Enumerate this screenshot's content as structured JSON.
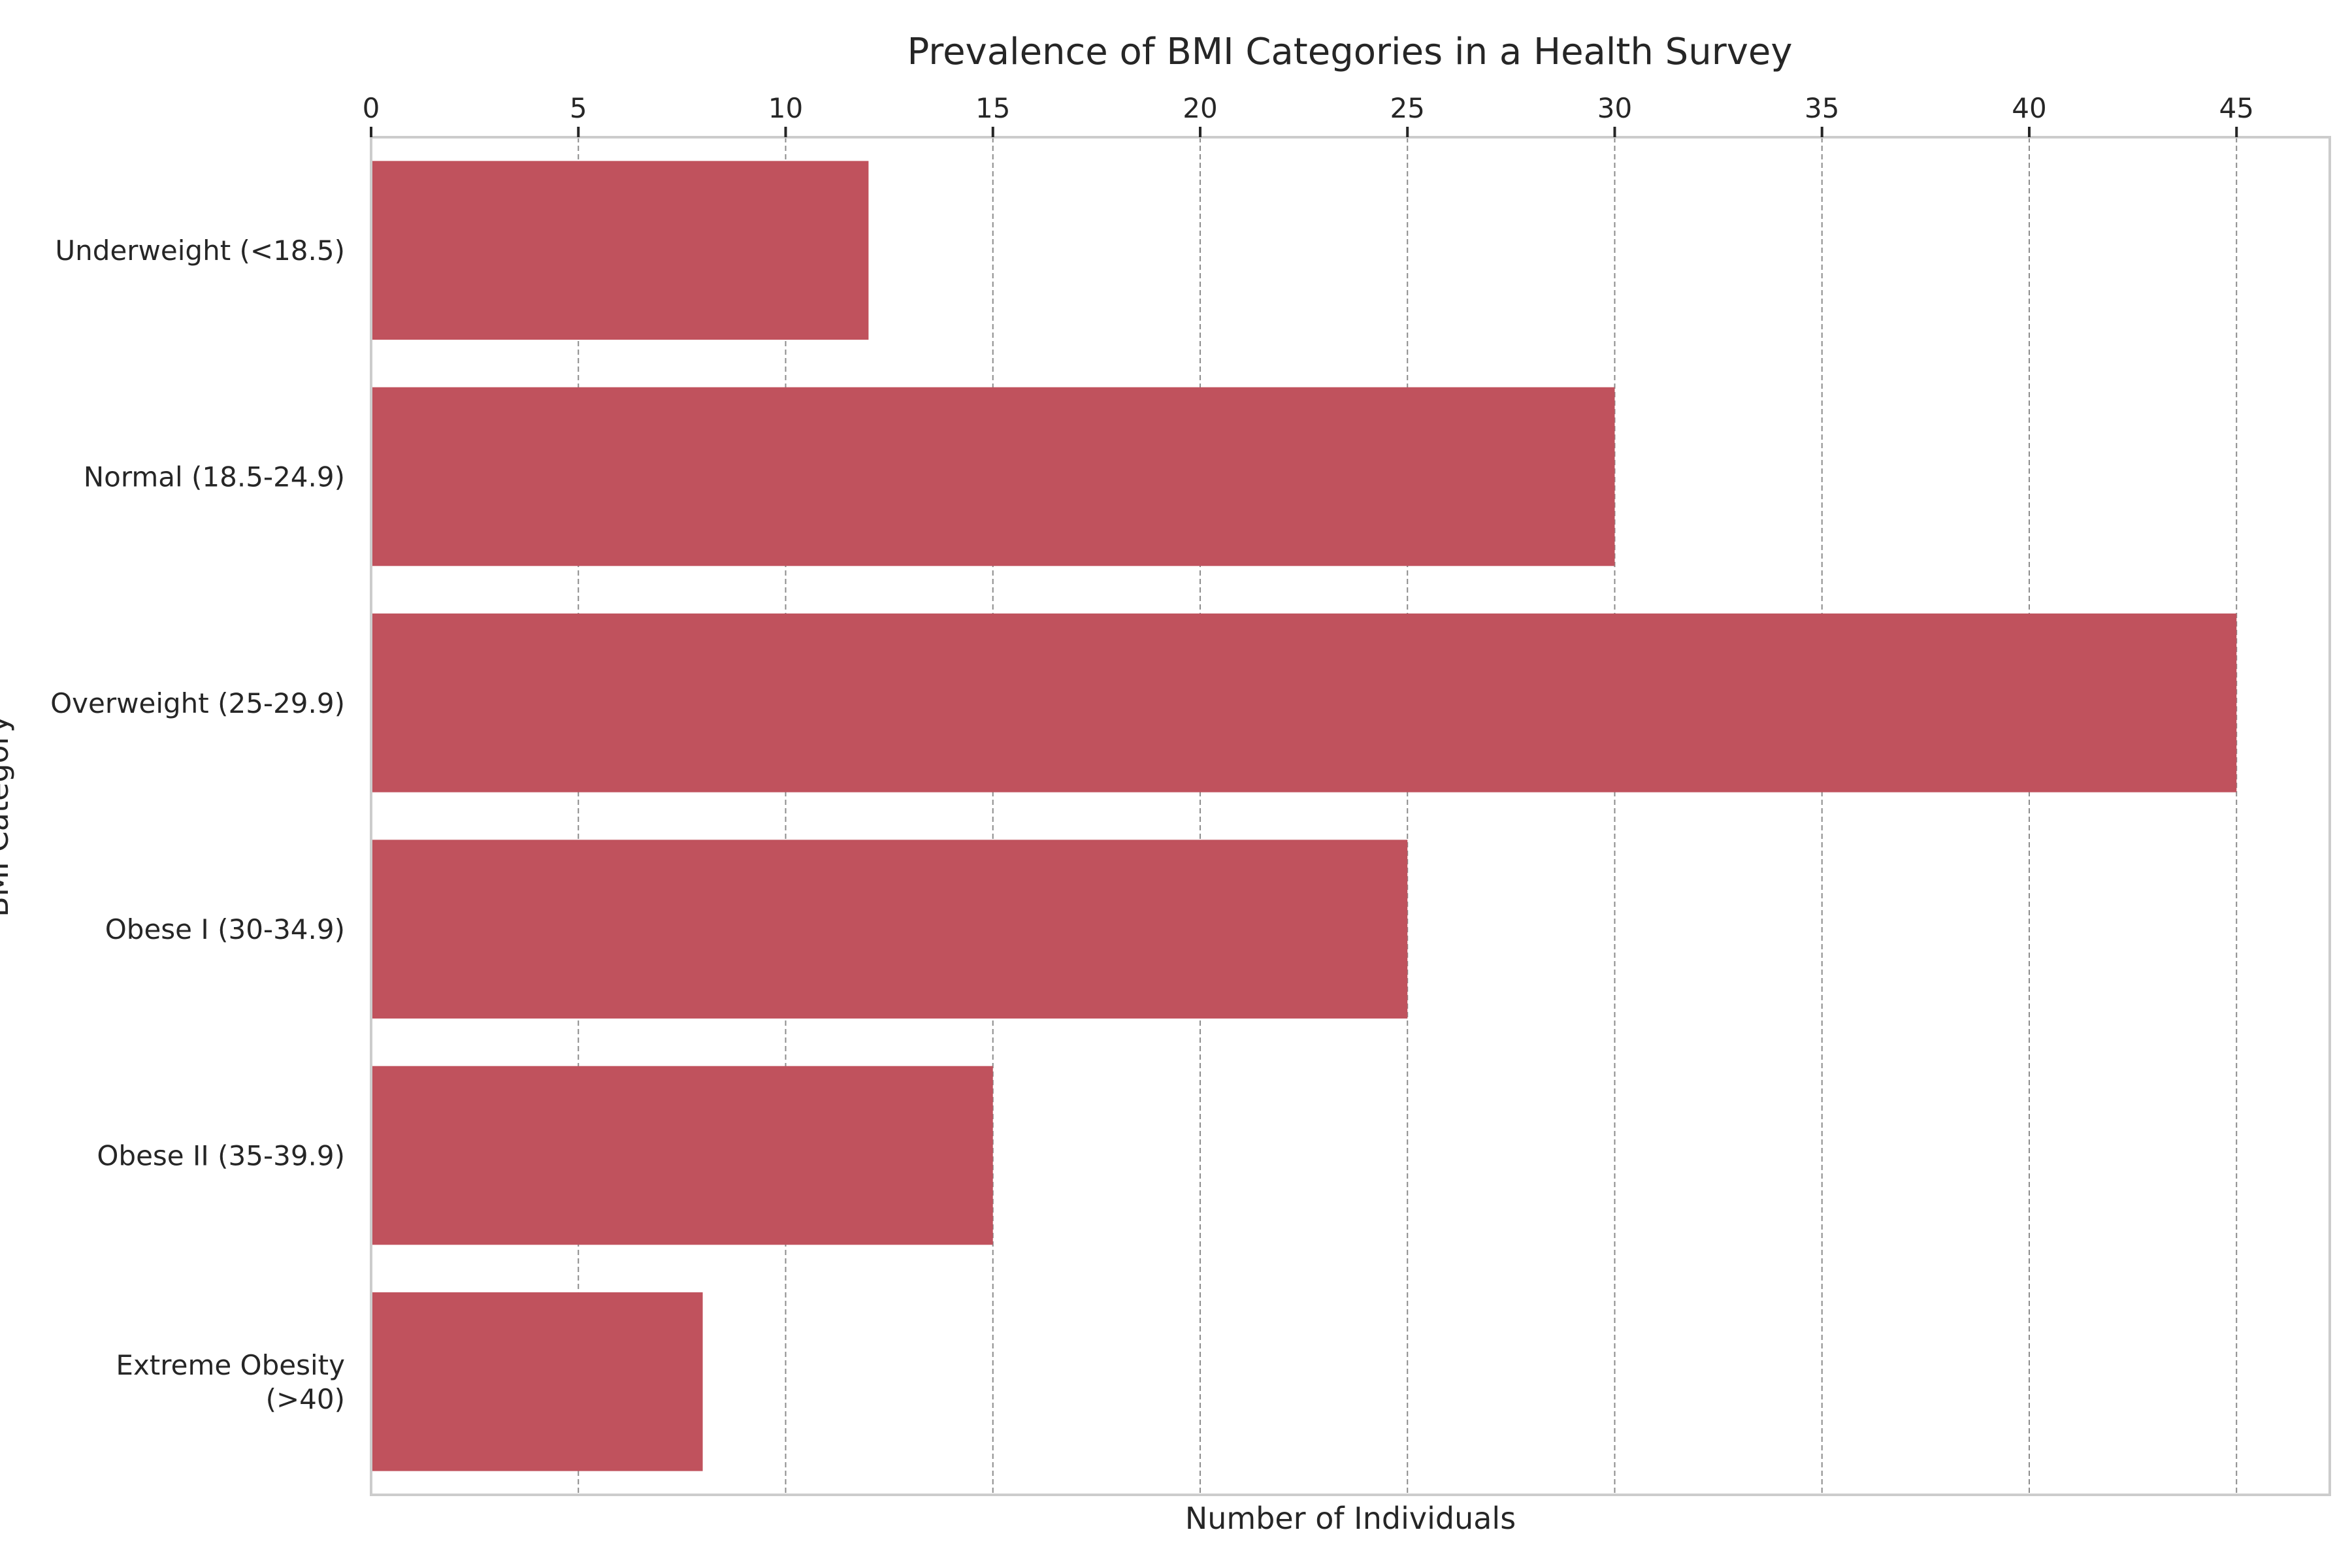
{
  "chart_data": {
    "type": "bar",
    "orientation": "horizontal",
    "title": "Prevalence of BMI Categories in a Health Survey",
    "xlabel": "Number of Individuals",
    "ylabel": "BMI Category",
    "categories": [
      "Underweight (<18.5)",
      "Normal (18.5-24.9)",
      "Overweight (25-29.9)",
      "Obese I (30-34.9)",
      "Obese II (35-39.9)",
      "Extreme Obesity (>40)"
    ],
    "category_lines": [
      [
        "Underweight (<18.5)"
      ],
      [
        "Normal (18.5-24.9)"
      ],
      [
        "Overweight (25-29.9)"
      ],
      [
        "Obese I (30-34.9)"
      ],
      [
        "Obese II (35-39.9)"
      ],
      [
        "Extreme Obesity",
        "(>40)"
      ]
    ],
    "values": [
      12,
      30,
      45,
      25,
      15,
      8
    ],
    "xlim": [
      0,
      47.25
    ],
    "xticks": [
      0,
      5,
      10,
      15,
      20,
      25,
      30,
      35,
      40,
      45
    ],
    "x_axis_position": "top",
    "grid": true,
    "bar_color": "#c0525d",
    "grid_color": "#8c8c8c",
    "frame_color": "#cccccc"
  }
}
